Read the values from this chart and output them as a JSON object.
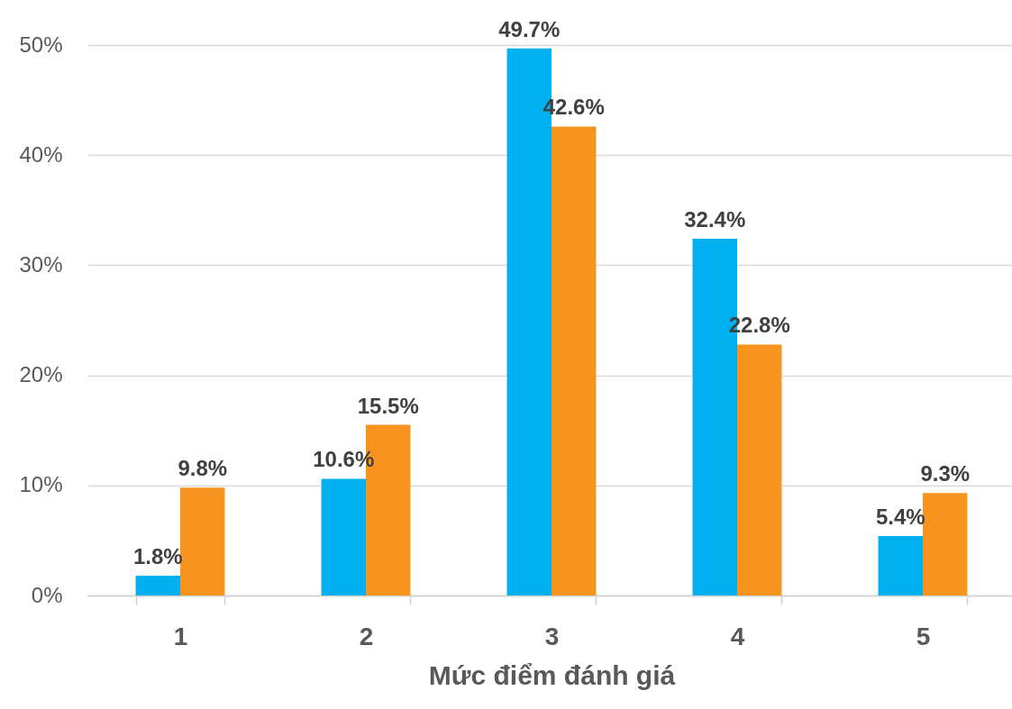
{
  "chart_data": {
    "type": "bar",
    "xlabel": "Mức điểm đánh giá",
    "categories": [
      "1",
      "2",
      "3",
      "4",
      "5"
    ],
    "series": [
      {
        "color": "#00b0f0",
        "values": [
          1.8,
          10.6,
          49.7,
          32.4,
          5.4
        ],
        "value_labels": [
          "1.8%",
          "10.6%",
          "49.7%",
          "32.4%",
          "5.4%"
        ]
      },
      {
        "color": "#f7941d",
        "values": [
          9.8,
          15.5,
          42.6,
          22.8,
          9.3
        ],
        "value_labels": [
          "9.8%",
          "15.5%",
          "42.6%",
          "22.8%",
          "9.3%"
        ]
      }
    ],
    "ylim": [
      0,
      50
    ],
    "yticks": [
      {
        "value": 0,
        "label": "0%"
      },
      {
        "value": 10,
        "label": "10%"
      },
      {
        "value": 20,
        "label": "20%"
      },
      {
        "value": 30,
        "label": "30%"
      },
      {
        "value": 40,
        "label": "40%"
      },
      {
        "value": 50,
        "label": "50%"
      }
    ],
    "grid": "y"
  }
}
